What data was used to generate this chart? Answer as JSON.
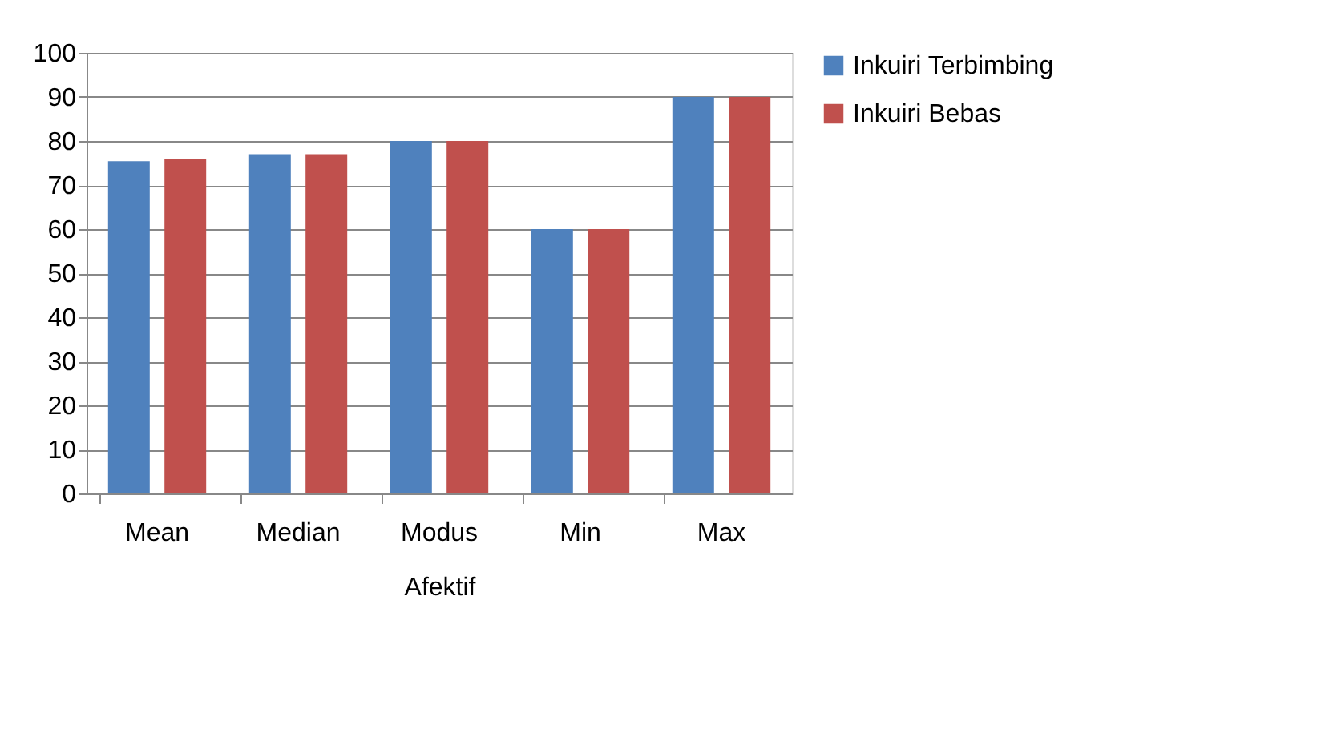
{
  "chart_data": {
    "type": "bar",
    "xlabel": "Afektif",
    "categories": [
      "Mean",
      "Median",
      "Modus",
      "Min",
      "Max"
    ],
    "series": [
      {
        "name": "Inkuiri Terbimbing",
        "color": "#4f81bd",
        "values": [
          75.4,
          77,
          80,
          60,
          90
        ]
      },
      {
        "name": "Inkuiri Bebas",
        "color": "#c0504d",
        "values": [
          76,
          77,
          80,
          60,
          90
        ]
      }
    ],
    "ylim": [
      0,
      100
    ],
    "yticks": [
      0,
      10,
      20,
      30,
      40,
      50,
      60,
      70,
      80,
      90,
      100
    ],
    "grid": "y",
    "legend": "right"
  }
}
